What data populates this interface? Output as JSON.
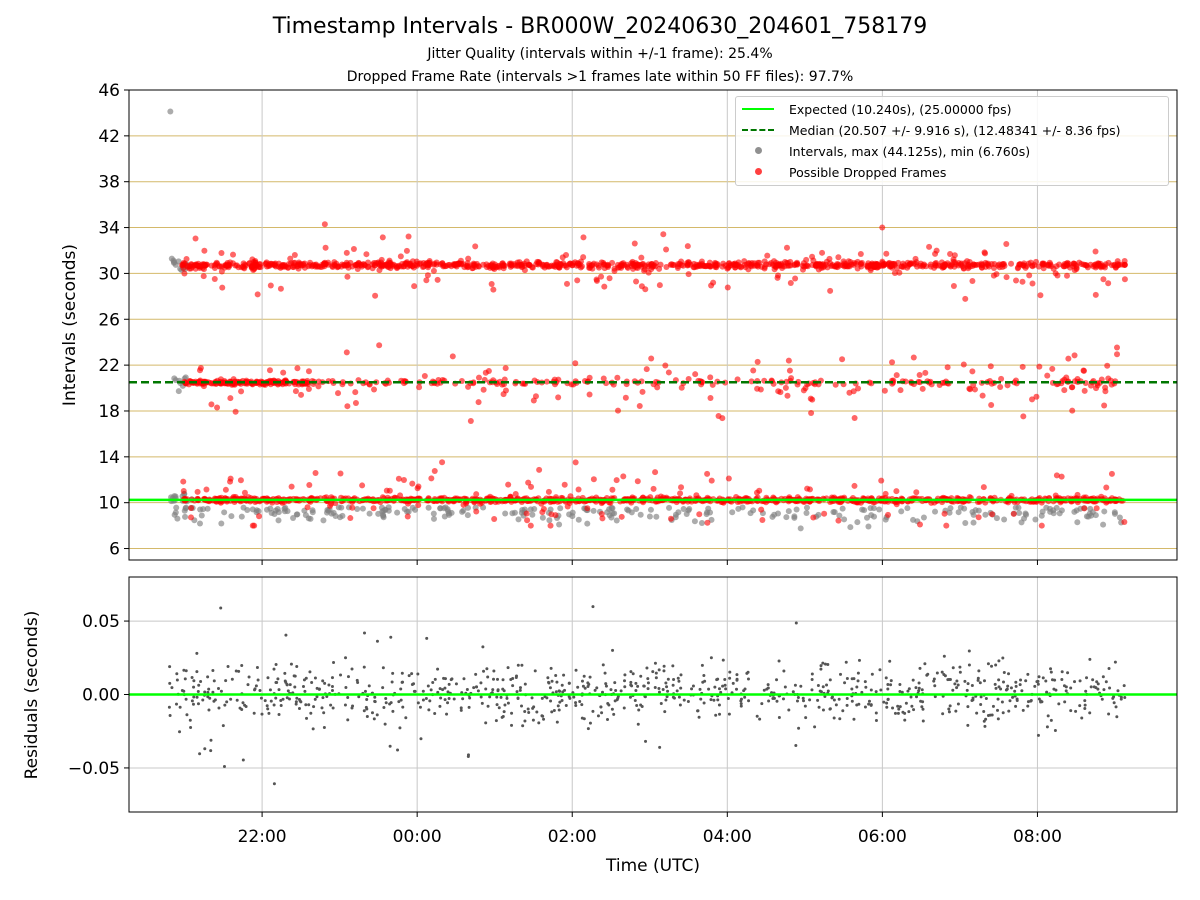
{
  "title": "Timestamp Intervals - BR000W_20240630_204601_758179",
  "subtitle1": "Jitter Quality (intervals within +/-1 frame): 25.4%",
  "subtitle2": "Dropped Frame Rate (intervals >1 frames late within 50 FF files): 97.7%",
  "legend": {
    "expected": "Expected (10.240s), (25.00000 fps)",
    "median": "Median (20.507 +/- 9.916 s), (12.48341 +/- 8.36 fps)",
    "intervals": "Intervals, max (44.125s), min (6.760s)",
    "dropped": "Possible Dropped Frames"
  },
  "colors": {
    "expected": "#00ff00",
    "median": "#007700",
    "intervals": "#808080",
    "dropped": "#ff0000",
    "residuals": "#555555",
    "hgrid": "#d4b96a",
    "vgrid": "#c8c8c8"
  },
  "chart_data": [
    {
      "type": "scatter",
      "ylabel": "Intervals (seconds)",
      "xlabel": "",
      "xlim": [
        "20:17",
        "09:48"
      ],
      "ylim": [
        5,
        46
      ],
      "yticks": [
        6,
        10,
        14,
        18,
        22,
        26,
        30,
        34,
        38,
        42,
        46
      ],
      "xticks": [
        "22:00",
        "00:00",
        "02:00",
        "04:00",
        "06:00",
        "08:00"
      ],
      "grid": true,
      "legend_position": "top-right",
      "expected_interval": 10.24,
      "median_interval": 20.507,
      "max_interval": 44.125,
      "min_interval": 6.76,
      "x_range": [
        "20:48",
        "09:08"
      ],
      "series": [
        {
          "name": "Intervals, max (44.125s), min (6.760s)",
          "bands": [
            10.24,
            20.48,
            30.72
          ]
        },
        {
          "name": "Possible Dropped Frames",
          "bands": [
            10.24,
            20.48,
            30.72
          ]
        }
      ]
    },
    {
      "type": "scatter",
      "ylabel": "Residuals (seconds)",
      "xlabel": "Time (UTC)",
      "xlim": [
        "20:17",
        "09:48"
      ],
      "ylim": [
        -0.08,
        0.08
      ],
      "yticks": [
        -0.05,
        0.0,
        0.05
      ],
      "ytick_labels": [
        "−0.05",
        "0.00",
        "0.05"
      ],
      "xticks": [
        "22:00",
        "00:00",
        "02:00",
        "04:00",
        "06:00",
        "08:00"
      ],
      "grid": true,
      "zero_line": 0.0
    }
  ]
}
